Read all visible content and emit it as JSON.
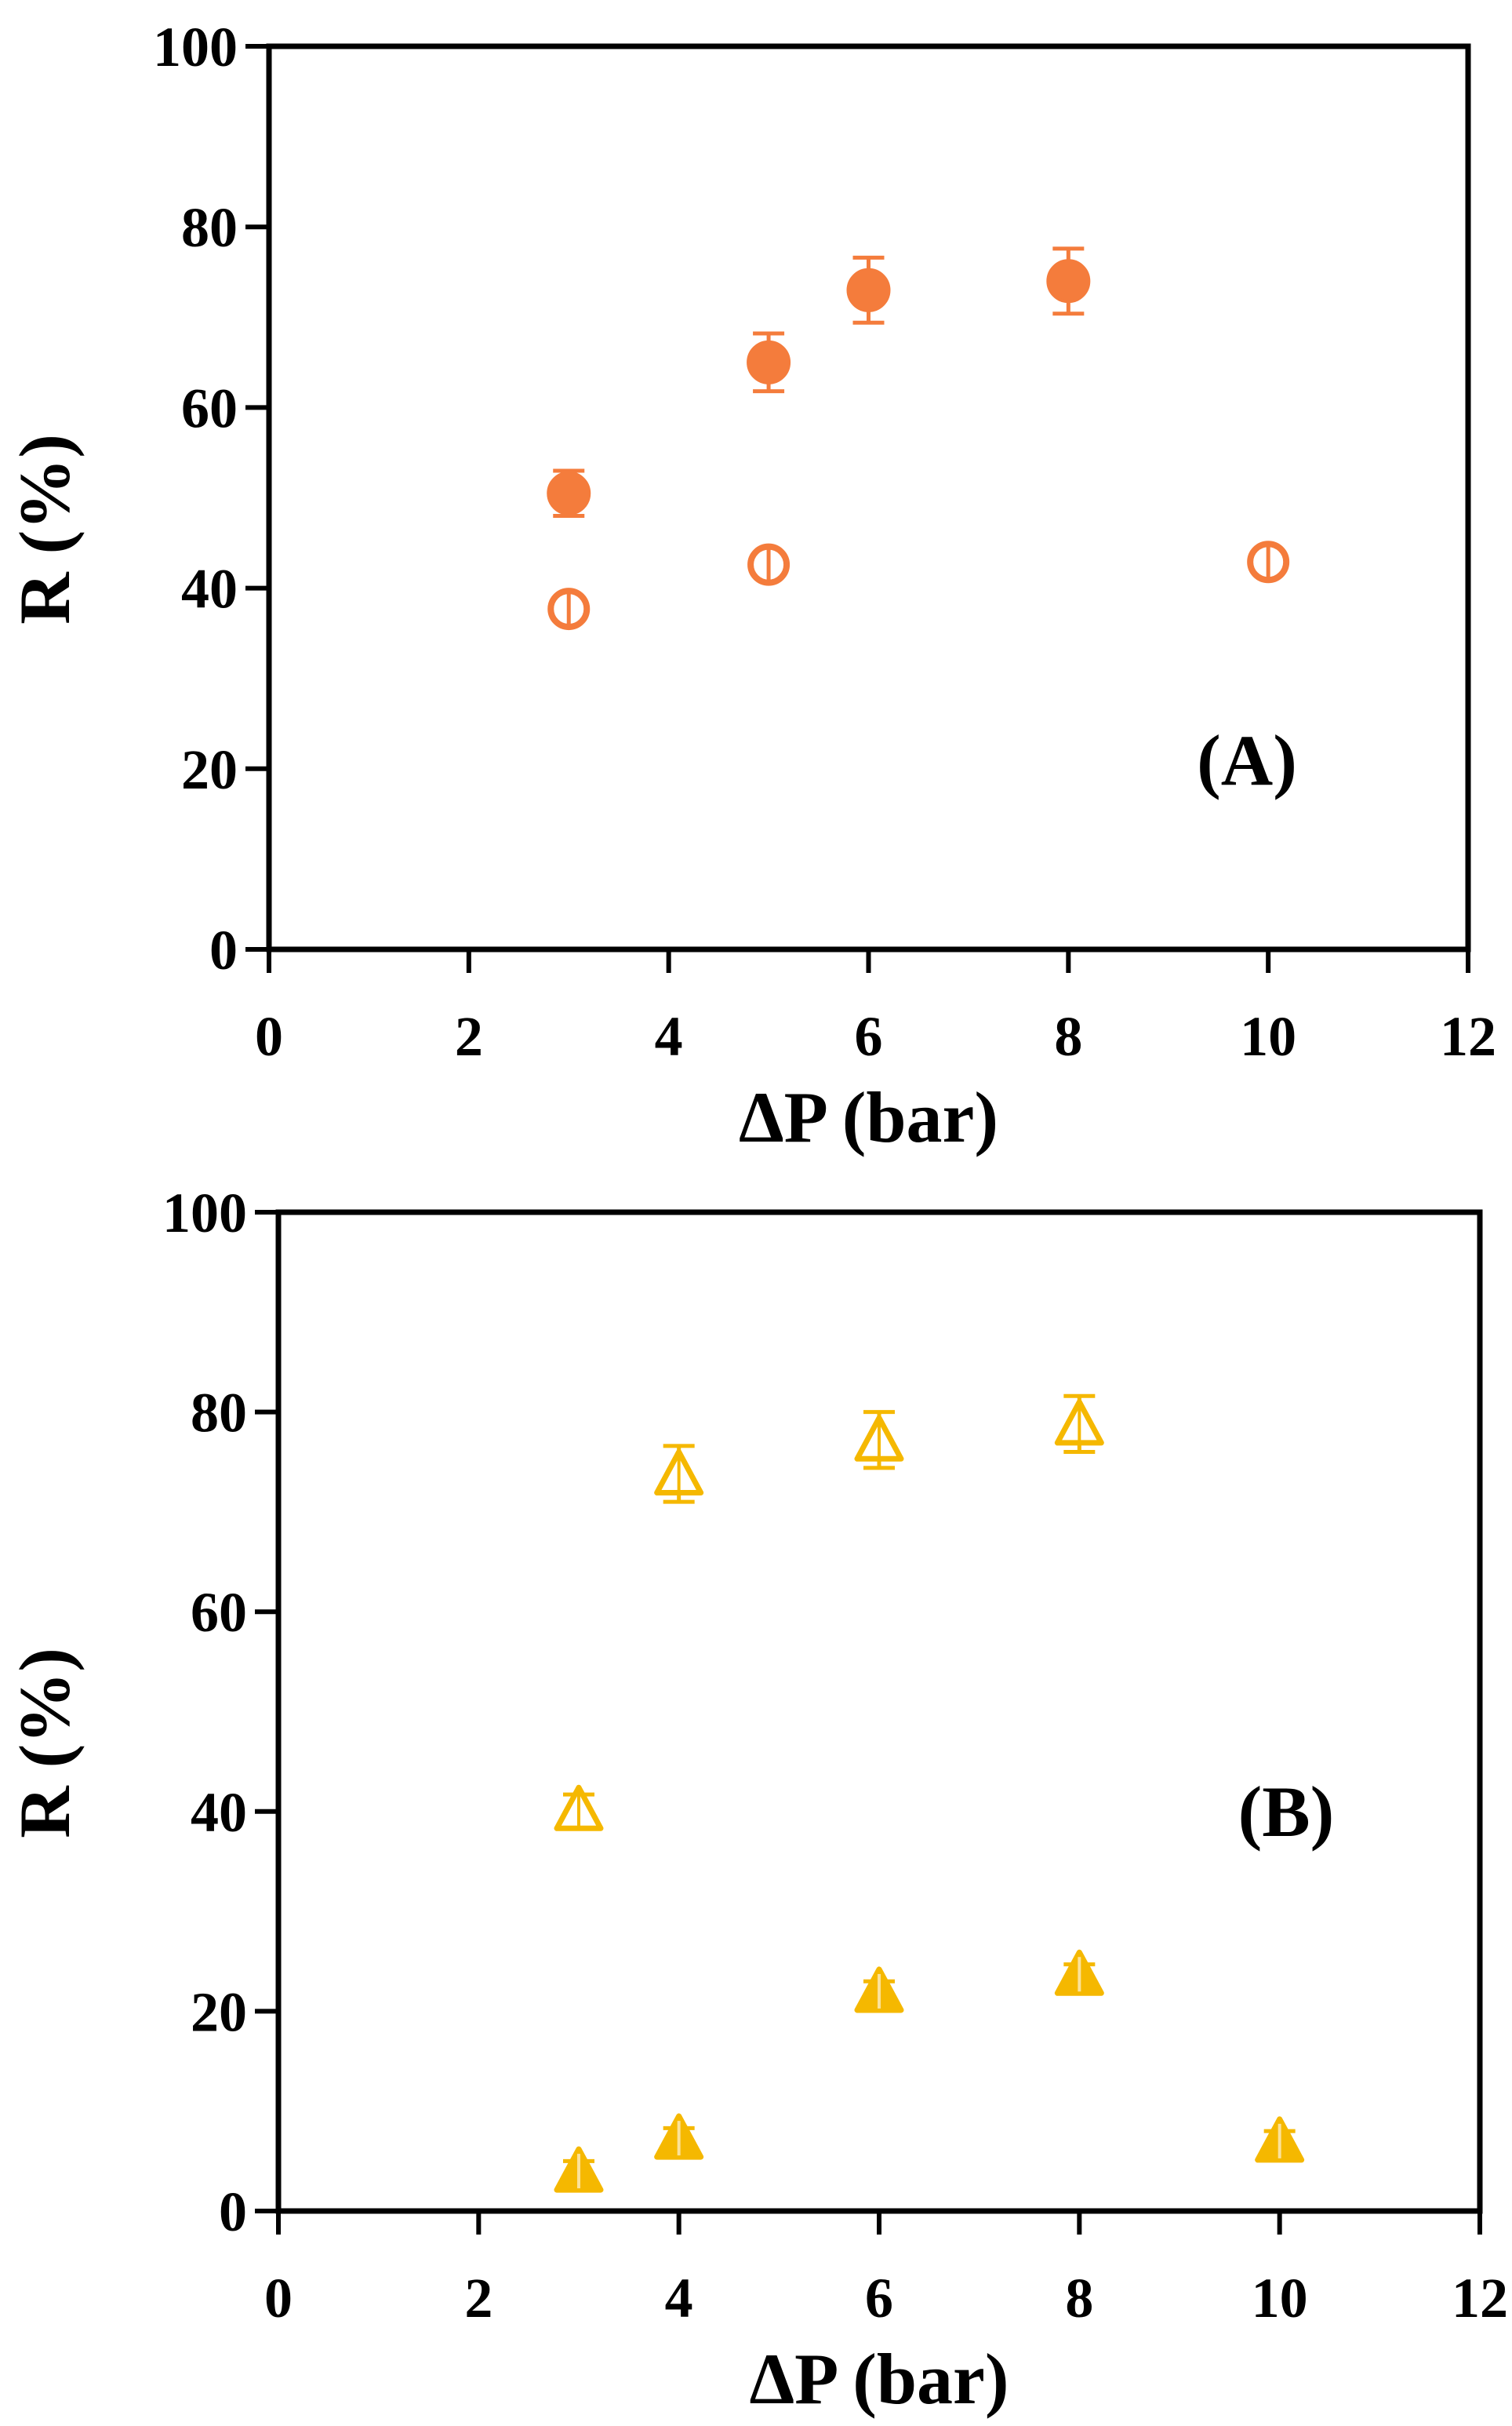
{
  "chart_data": [
    {
      "type": "scatter",
      "panel_label": "(A)",
      "xlabel": "ΔP (bar)",
      "ylabel": "R (%)",
      "xlim": [
        0,
        12
      ],
      "ylim": [
        0,
        100
      ],
      "xticks": [
        0,
        2,
        4,
        6,
        8,
        10,
        12
      ],
      "yticks": [
        0,
        20,
        40,
        60,
        80,
        100
      ],
      "grid": false,
      "series": [
        {
          "marker": "circle-filled",
          "color": "#F47C3C",
          "points": [
            {
              "x": 3,
              "y": 50.5,
              "err": 2.5
            },
            {
              "x": 5,
              "y": 65,
              "err": 3.2
            },
            {
              "x": 6,
              "y": 73,
              "err": 3.6
            },
            {
              "x": 8,
              "y": 74,
              "err": 3.6
            }
          ]
        },
        {
          "marker": "circle-open",
          "color": "#F47C3C",
          "points": [
            {
              "x": 3,
              "y": 37.7,
              "err": 1.2
            },
            {
              "x": 5,
              "y": 42.6,
              "err": 1.2
            },
            {
              "x": 10,
              "y": 42.9,
              "err": 1.2
            }
          ]
        }
      ]
    },
    {
      "type": "scatter",
      "panel_label": "(B)",
      "xlabel": "ΔP (bar)",
      "ylabel": "R (%)",
      "xlim": [
        0,
        12
      ],
      "ylim": [
        0,
        100
      ],
      "xticks": [
        0,
        2,
        4,
        6,
        8,
        10,
        12
      ],
      "yticks": [
        0,
        20,
        40,
        60,
        80,
        100
      ],
      "grid": false,
      "series": [
        {
          "marker": "triangle-open",
          "color": "#F5B800",
          "points": [
            {
              "x": 3,
              "y": 40.2,
              "err": 1.5
            },
            {
              "x": 4,
              "y": 73.8,
              "err": 2.8
            },
            {
              "x": 6,
              "y": 77.2,
              "err": 2.8
            },
            {
              "x": 8,
              "y": 78.8,
              "err": 2.8
            }
          ]
        },
        {
          "marker": "triangle-filled",
          "color": "#F5B800",
          "points": [
            {
              "x": 3,
              "y": 4,
              "err": 1
            },
            {
              "x": 4,
              "y": 7.3,
              "err": 1
            },
            {
              "x": 6,
              "y": 22,
              "err": 1
            },
            {
              "x": 8,
              "y": 23.7,
              "err": 1
            },
            {
              "x": 10,
              "y": 7,
              "err": 1
            }
          ]
        }
      ]
    }
  ]
}
